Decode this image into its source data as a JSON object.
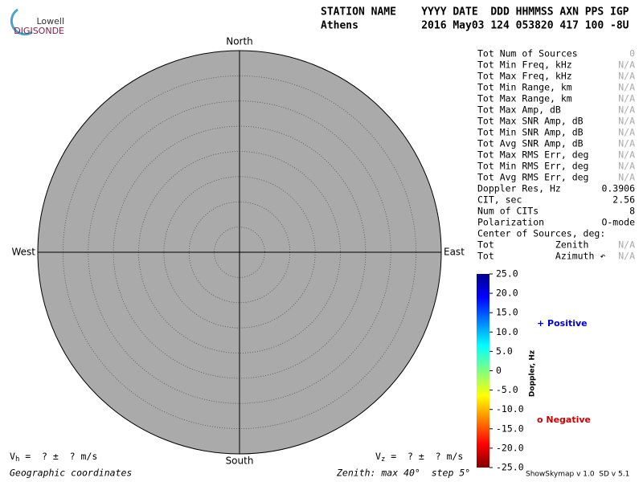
{
  "logo": {
    "top": "Lowell",
    "bottom": "DIGISONDE"
  },
  "header": {
    "labels": "STATION NAME    YYYY DATE  DDD HHMMSS AXN PPS IGP",
    "values": "Athens          2016 May03 124 053820 417 100 -8U"
  },
  "compass": {
    "north": "North",
    "south": "South",
    "west": "West",
    "east": "East"
  },
  "stats": [
    {
      "label": "Tot Num of Sources",
      "value": "0",
      "color": "#aaaaaa"
    },
    {
      "label": "Tot Min Freq, kHz",
      "value": "N/A",
      "color": "#aaaaaa"
    },
    {
      "label": "Tot Max Freq, kHz",
      "value": "N/A",
      "color": "#aaaaaa"
    },
    {
      "label": "Tot Min Range, km",
      "value": "N/A",
      "color": "#aaaaaa"
    },
    {
      "label": "Tot Max Range, km",
      "value": "N/A",
      "color": "#aaaaaa"
    },
    {
      "label": "Tot Max Amp, dB",
      "value": "N/A",
      "color": "#aaaaaa"
    },
    {
      "label": "Tot Max SNR Amp, dB",
      "value": "N/A",
      "color": "#aaaaaa"
    },
    {
      "label": "Tot Min SNR Amp, dB",
      "value": "N/A",
      "color": "#aaaaaa"
    },
    {
      "label": "Tot Avg SNR Amp, dB",
      "value": "N/A",
      "color": "#aaaaaa"
    },
    {
      "label": "Tot Max RMS Err, deg",
      "value": "N/A",
      "color": "#aaaaaa"
    },
    {
      "label": "Tot Min RMS Err, deg",
      "value": "N/A",
      "color": "#aaaaaa"
    },
    {
      "label": "Tot Avg RMS Err, deg",
      "value": "N/A",
      "color": "#aaaaaa"
    },
    {
      "label": "Doppler Res, Hz",
      "value": "0.3906",
      "color": "#000000"
    },
    {
      "label": "CIT, sec",
      "value": "2.56",
      "color": "#000000"
    },
    {
      "label": "Num of CITs",
      "value": "8",
      "color": "#000000"
    },
    {
      "label": "Polarization",
      "value": "O-mode",
      "color": "#000000"
    },
    {
      "label": "Center of Sources, deg:",
      "value": "",
      "color": "#000000"
    },
    {
      "label": "Tot           Zenith",
      "value": "N/A",
      "color": "#aaaaaa"
    },
    {
      "label": "Tot           Azimuth ↶",
      "value": "N/A",
      "color": "#aaaaaa"
    }
  ],
  "colorbar": {
    "title": "Doppler, Hz",
    "lim": [
      -25,
      25
    ],
    "ticks": [
      {
        "value": 25,
        "label": "25.0"
      },
      {
        "value": 20,
        "label": "20.0"
      },
      {
        "value": 15,
        "label": "15.0"
      },
      {
        "value": 10,
        "label": "10.0"
      },
      {
        "value": 5,
        "label": "5.0"
      },
      0,
      {
        "value": -5,
        "label": "-5.0"
      },
      {
        "value": -10,
        "label": "-10.0"
      },
      {
        "value": -15,
        "label": "-15.0"
      },
      {
        "value": -20,
        "label": "-20.0"
      },
      {
        "value": -25,
        "label": "-25.0"
      }
    ]
  },
  "legend": {
    "positive": "+ Positive",
    "positive_color": "#0000cc",
    "negative": "o Negative",
    "negative_color": "#cc0000"
  },
  "footer": {
    "vh": {
      "symbol": "V",
      "sub": "h",
      "text": " =  ? ±  ? m/s"
    },
    "vz": {
      "symbol": "V",
      "sub": "z",
      "text": " =  ? ±  ? m/s"
    },
    "coordinates": "Geographic coordinates",
    "zenith": "Zenith: max 40°  step 5°",
    "version": "ShowSkymap v 1.0  SD v 5.1"
  }
}
